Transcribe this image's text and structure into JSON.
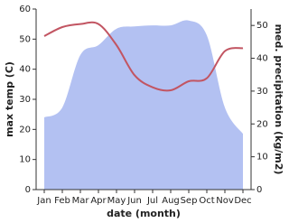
{
  "chart_data": {
    "type": "line-area",
    "x_label": "date (month)",
    "y_label": "max temp (C)",
    "y2_label": "med. precipitation (kg/m2)",
    "categories": [
      "Jan",
      "Feb",
      "Mar",
      "Apr",
      "May",
      "Jun",
      "Jul",
      "Aug",
      "Sep",
      "Oct",
      "Nov",
      "Dec"
    ],
    "ylim": [
      0,
      60
    ],
    "yticks": [
      0,
      10,
      20,
      30,
      40,
      50,
      60
    ],
    "y2lim": [
      0,
      55
    ],
    "y2ticks": [
      0,
      10,
      20,
      30,
      40,
      50
    ],
    "series": [
      {
        "name": "med. precipitation",
        "color": "#b3c1f2",
        "axis": "y2",
        "kind": "area",
        "values": [
          22,
          25,
          41,
          44,
          49,
          49.7,
          50,
          50,
          51.5,
          47,
          25,
          17
        ]
      },
      {
        "name": "max temp",
        "color": "#c25562",
        "kind": "line",
        "values": [
          51,
          54,
          55,
          55,
          48,
          38,
          34,
          33,
          36,
          37,
          46,
          47
        ]
      }
    ]
  }
}
